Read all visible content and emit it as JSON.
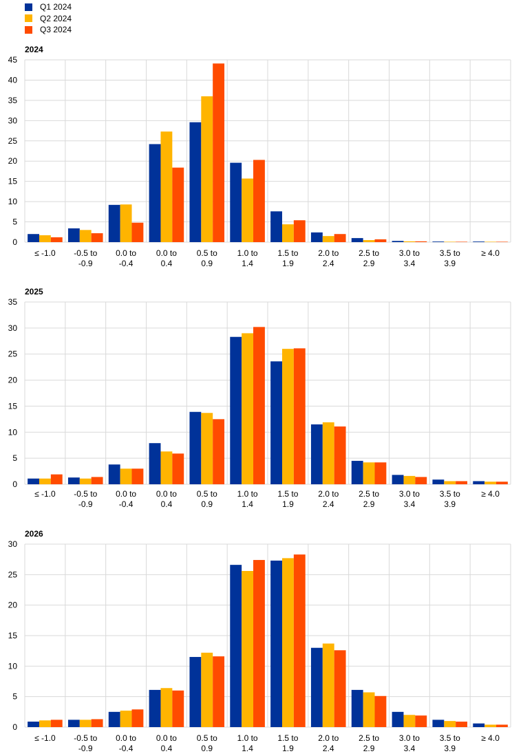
{
  "legend": [
    {
      "label": "Q1 2024",
      "color": "#003299"
    },
    {
      "label": "Q2 2024",
      "color": "#FFB400"
    },
    {
      "label": "Q3 2024",
      "color": "#FF4B00"
    }
  ],
  "chart_data": [
    {
      "type": "bar",
      "title": "2024",
      "categories": [
        [
          "≤ -1.0"
        ],
        [
          "-0.5  to",
          "-0.9"
        ],
        [
          "0.0  to",
          "-0.4"
        ],
        [
          "0.0  to",
          "0.4"
        ],
        [
          "0.5  to",
          "0.9"
        ],
        [
          "1.0  to",
          "1.4"
        ],
        [
          "1.5  to",
          "1.9"
        ],
        [
          "2.0  to",
          "2.4"
        ],
        [
          "2.5  to",
          "2.9"
        ],
        [
          "3.0  to",
          "3.4"
        ],
        [
          "3.5  to",
          "3.9"
        ],
        [
          "≥ 4.0"
        ]
      ],
      "ylim": [
        0,
        45
      ],
      "yticks": [
        0,
        5,
        10,
        15,
        20,
        25,
        30,
        35,
        40,
        45
      ],
      "series": [
        {
          "name": "Q1 2024",
          "values": [
            2.0,
            3.4,
            9.2,
            24.2,
            29.6,
            19.6,
            7.6,
            2.4,
            1.0,
            0.3,
            0.15,
            0.15
          ]
        },
        {
          "name": "Q2 2024",
          "values": [
            1.7,
            3.0,
            9.3,
            27.3,
            36.0,
            15.7,
            4.4,
            1.5,
            0.5,
            0.2,
            0.1,
            0.1
          ]
        },
        {
          "name": "Q3 2024",
          "values": [
            1.2,
            2.2,
            4.8,
            18.4,
            44.1,
            20.3,
            5.4,
            2.0,
            0.7,
            0.2,
            0.1,
            0.1
          ]
        }
      ]
    },
    {
      "type": "bar",
      "title": "2025",
      "categories": [
        [
          "≤ -1.0"
        ],
        [
          "-0.5  to",
          "-0.9"
        ],
        [
          "0.0  to",
          "-0.4"
        ],
        [
          "0.0  to",
          "0.4"
        ],
        [
          "0.5  to",
          "0.9"
        ],
        [
          "1.0  to",
          "1.4"
        ],
        [
          "1.5  to",
          "1.9"
        ],
        [
          "2.0  to",
          "2.4"
        ],
        [
          "2.5  to",
          "2.9"
        ],
        [
          "3.0  to",
          "3.4"
        ],
        [
          "3.5  to",
          "3.9"
        ],
        [
          "≥ 4.0"
        ]
      ],
      "ylim": [
        0,
        35
      ],
      "yticks": [
        0,
        5,
        10,
        15,
        20,
        25,
        30,
        35
      ],
      "series": [
        {
          "name": "Q1 2024",
          "values": [
            1.1,
            1.3,
            3.8,
            7.9,
            13.9,
            28.3,
            23.6,
            11.5,
            4.5,
            1.8,
            0.9,
            0.6
          ]
        },
        {
          "name": "Q2 2024",
          "values": [
            1.1,
            1.1,
            3.0,
            6.3,
            13.7,
            29.0,
            26.0,
            11.9,
            4.2,
            1.6,
            0.6,
            0.5
          ]
        },
        {
          "name": "Q3 2024",
          "values": [
            1.9,
            1.4,
            3.0,
            5.9,
            12.5,
            30.2,
            26.1,
            11.1,
            4.2,
            1.4,
            0.6,
            0.5
          ]
        }
      ]
    },
    {
      "type": "bar",
      "title": "2026",
      "categories": [
        [
          "≤ -1.0"
        ],
        [
          "-0.5  to",
          "-0.9"
        ],
        [
          "0.0  to",
          "-0.4"
        ],
        [
          "0.0  to",
          "0.4"
        ],
        [
          "0.5  to",
          "0.9"
        ],
        [
          "1.0  to",
          "1.4"
        ],
        [
          "1.5  to",
          "1.9"
        ],
        [
          "2.0  to",
          "2.4"
        ],
        [
          "2.5  to",
          "2.9"
        ],
        [
          "3.0  to",
          "3.4"
        ],
        [
          "3.5  to",
          "3.9"
        ],
        [
          "≥ 4.0"
        ]
      ],
      "ylim": [
        0,
        30
      ],
      "yticks": [
        0,
        5,
        10,
        15,
        20,
        25,
        30
      ],
      "series": [
        {
          "name": "Q1 2024",
          "values": [
            0.9,
            1.2,
            2.5,
            6.1,
            11.5,
            26.6,
            27.3,
            13.0,
            6.1,
            2.5,
            1.2,
            0.6
          ]
        },
        {
          "name": "Q2 2024",
          "values": [
            1.1,
            1.2,
            2.7,
            6.4,
            12.2,
            25.6,
            27.7,
            13.7,
            5.7,
            2.0,
            1.0,
            0.4
          ]
        },
        {
          "name": "Q3 2024",
          "values": [
            1.2,
            1.3,
            2.9,
            6.0,
            11.6,
            27.4,
            28.3,
            12.6,
            5.1,
            1.9,
            0.9,
            0.4
          ]
        }
      ]
    }
  ]
}
